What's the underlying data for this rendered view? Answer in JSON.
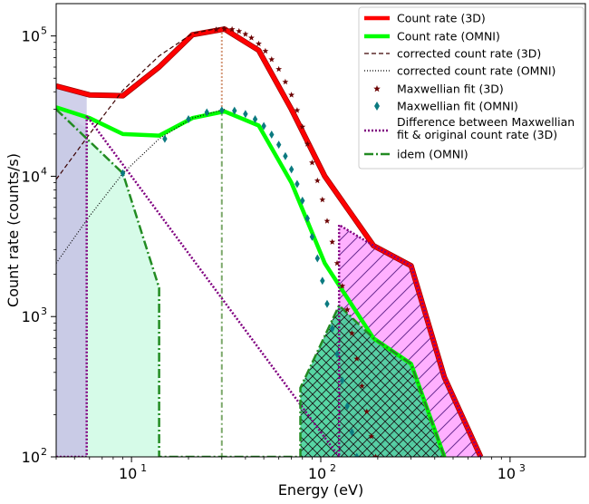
{
  "chart_data": {
    "type": "line",
    "xlabel": "Energy (eV)",
    "ylabel": "Count rate (counts/s)",
    "xscale": "log",
    "yscale": "log",
    "xlim": [
      4,
      2500
    ],
    "ylim": [
      100,
      170000
    ],
    "legend_position": "top-right",
    "x_ticks": [
      {
        "value": 10,
        "base": "10",
        "exp": "1"
      },
      {
        "value": 100,
        "base": "10",
        "exp": "2"
      },
      {
        "value": 1000,
        "base": "10",
        "exp": "3"
      }
    ],
    "y_ticks": [
      {
        "value": 100,
        "base": "10",
        "exp": "2"
      },
      {
        "value": 1000,
        "base": "10",
        "exp": "3"
      },
      {
        "value": 10000,
        "base": "10",
        "exp": "4"
      },
      {
        "value": 100000,
        "base": "10",
        "exp": "5"
      }
    ],
    "peak_energy": 30,
    "series": [
      {
        "name": "Count rate (3D)",
        "color": "#ff0000",
        "style": "solid",
        "x": [
          4,
          6,
          9,
          14,
          21,
          31,
          47,
          70,
          105,
          190,
          300,
          450,
          700
        ],
        "y": [
          44000,
          38000,
          37500,
          60000,
          102000,
          112000,
          79000,
          30000,
          10000,
          3200,
          2300,
          370,
          100
        ]
      },
      {
        "name": "Count rate (OMNI)",
        "color": "#00ff00",
        "style": "solid",
        "x": [
          4,
          6,
          9,
          14,
          21,
          31,
          47,
          70,
          105,
          190,
          300,
          450
        ],
        "y": [
          31000,
          26000,
          20000,
          19500,
          26000,
          29000,
          23000,
          9000,
          2400,
          700,
          460,
          100
        ]
      },
      {
        "name": "corrected count rate (3D)",
        "color": "#3a0000",
        "style": "dashed",
        "x": [
          4,
          6,
          9,
          14,
          21,
          31
        ],
        "y": [
          9500,
          20000,
          41000,
          72000,
          104000,
          116000
        ]
      },
      {
        "name": "corrected count rate (OMNI)",
        "color": "#000000",
        "style": "dotted",
        "x": [
          4,
          6,
          9,
          14,
          21,
          31
        ],
        "y": [
          2400,
          5200,
          10500,
          18500,
          26000,
          30000
        ]
      },
      {
        "name": "Maxwellian fit (3D)",
        "color": "#6b0000",
        "style": "star-markers",
        "x": [
          28,
          31,
          34,
          37,
          40,
          43,
          47,
          51,
          55,
          60,
          65,
          70,
          75,
          80,
          85,
          90,
          96,
          102,
          108,
          115,
          122,
          130,
          138,
          146,
          155,
          165,
          175,
          185,
          195
        ],
        "y": [
          111000,
          112000,
          111500,
          108000,
          103000,
          97000,
          88000,
          78000,
          68000,
          58000,
          47000,
          38000,
          29500,
          22500,
          17000,
          12500,
          9300,
          6800,
          4800,
          3400,
          2400,
          1650,
          1120,
          760,
          500,
          320,
          210,
          140,
          100
        ]
      },
      {
        "name": "Maxwellian fit (OMNI)",
        "color": "#0b7a80",
        "style": "diamond-markers",
        "x": [
          9,
          15,
          20,
          25,
          30,
          35,
          40,
          45,
          50,
          55,
          60,
          65,
          70,
          75,
          80,
          85,
          90,
          96,
          102,
          108,
          115,
          122,
          130,
          138,
          146,
          155,
          165
        ],
        "y": [
          10500,
          18500,
          25500,
          28500,
          29500,
          29300,
          27800,
          25500,
          22800,
          19800,
          16800,
          13900,
          11200,
          8800,
          6700,
          5000,
          3700,
          2600,
          1800,
          1230,
          820,
          540,
          350,
          230,
          150,
          100,
          70
        ]
      },
      {
        "name": "Difference between Maxwellian fit & original count rate (3D)",
        "color": "#800080",
        "style": "dotted-hatched",
        "x": [
          4,
          5.8,
          5.8,
          125,
          125,
          190,
          300,
          450,
          700
        ],
        "y": [
          100,
          100,
          27000,
          100,
          4500,
          3200,
          2300,
          370,
          100
        ]
      },
      {
        "name": "idem (OMNI)",
        "color": "#228B22",
        "style": "dashdot-crosshatched",
        "x": [
          4,
          9,
          14,
          14,
          78,
          78,
          125,
          190,
          300,
          450
        ],
        "y": [
          30000,
          10500,
          1600,
          100,
          100,
          310,
          1200,
          700,
          460,
          100
        ]
      }
    ],
    "legend": [
      "Count rate (3D)",
      "Count rate (OMNI)",
      "corrected count rate (3D)",
      "corrected count rate (OMNI)",
      "Maxwellian fit (3D)",
      "Maxwellian fit (OMNI)",
      "Difference between Maxwellian",
      "fit & original count rate (3D)",
      "idem (OMNI)"
    ]
  }
}
